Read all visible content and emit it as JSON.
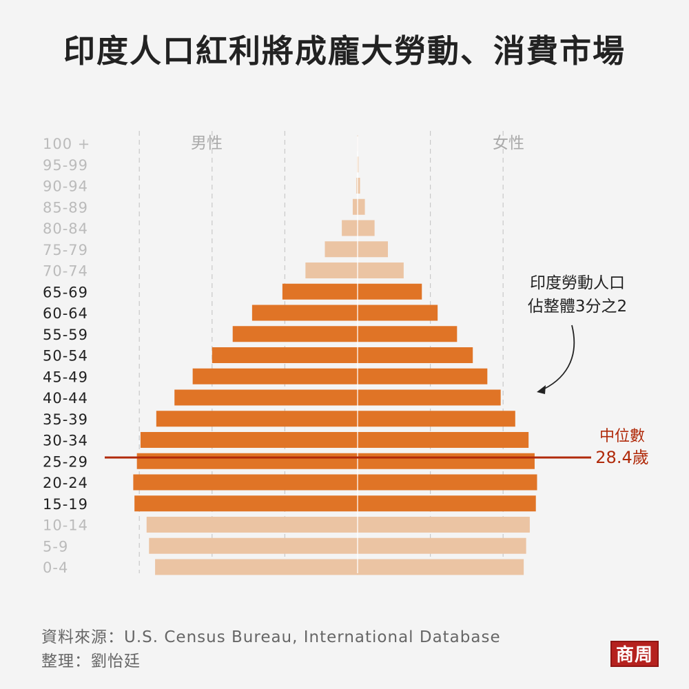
{
  "title": "印度人口紅利將成龐大勞動、消費市場",
  "source": "資料來源：U.S. Census Bureau, International Database",
  "credit": "整理：劉怡廷",
  "logo_text": "商周",
  "colors": {
    "working_age": "#e07426",
    "dependent": "#ebc4a3",
    "median_line": "#b02a0a",
    "label_bold": "#222222",
    "label_light": "#bbbbbb",
    "grid": "#c8c8c8"
  },
  "chart_data": {
    "type": "bar",
    "orientation": "horizontal",
    "layout": "population-pyramid",
    "categories": [
      "100 +",
      "95-99",
      "90-94",
      "85-89",
      "80-84",
      "75-79",
      "70-74",
      "65-69",
      "60-64",
      "55-59",
      "50-54",
      "45-49",
      "40-44",
      "35-39",
      "30-34",
      "25-29",
      "20-24",
      "15-19",
      "10-14",
      "5-9",
      "0-4"
    ],
    "series": [
      {
        "name": "男性",
        "values": [
          0.02,
          0.05,
          0.1,
          0.4,
          1.3,
          2.7,
          4.3,
          6.2,
          8.7,
          10.3,
          12.0,
          13.6,
          15.1,
          16.6,
          17.9,
          18.2,
          18.5,
          18.4,
          17.4,
          17.2,
          16.7
        ]
      },
      {
        "name": "女性",
        "values": [
          0.02,
          0.08,
          0.2,
          0.6,
          1.4,
          2.5,
          3.8,
          5.3,
          6.6,
          8.2,
          9.5,
          10.7,
          11.8,
          13.0,
          14.1,
          14.6,
          14.8,
          14.7,
          14.2,
          13.9,
          13.7
        ]
      }
    ],
    "highlight_categories": [
      "65-69",
      "60-64",
      "55-59",
      "50-54",
      "45-49",
      "40-44",
      "35-39",
      "30-34",
      "25-29",
      "20-24",
      "15-19"
    ],
    "median_age": "28.4歲",
    "median_label": "中位數",
    "annotation": [
      "印度勞動人口",
      "佔整體3分之2"
    ]
  }
}
